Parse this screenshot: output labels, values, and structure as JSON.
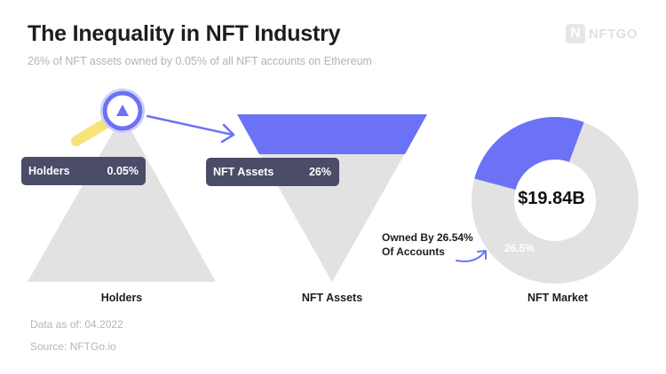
{
  "header": {
    "title": "The Inequality in NFT Industry",
    "subtitle": "26% of NFT assets owned by 0.05% of all NFT accounts on Ethereum",
    "logo_text": "NFTGO",
    "logo_mark": "N"
  },
  "footer": {
    "data_as_of": "Data as of: 04.2022",
    "source": "Source: NFTGo.io"
  },
  "colors": {
    "accent": "#6b72f5",
    "gray": "#e2e2e2",
    "label_bg": "#4a4c68",
    "highlight": "#f8e27a"
  },
  "chart_data": [
    {
      "type": "pyramid",
      "name": "Holders",
      "label": "Holders",
      "share_label": "0.05%",
      "share_percent": 0.05,
      "caption": "Holders"
    },
    {
      "type": "inverted-pyramid",
      "name": "NFT Assets",
      "label": "NFT Assets",
      "share_label": "26%",
      "share_percent": 26,
      "caption": "NFT Assets"
    },
    {
      "type": "donut",
      "name": "NFT Market",
      "center_value": "$19.84B",
      "slice_label": "26.5%",
      "slice_percent": 26.5,
      "annotation_line1": "Owned By 26.54%",
      "annotation_line2": "Of Accounts",
      "caption": "NFT Market"
    }
  ]
}
